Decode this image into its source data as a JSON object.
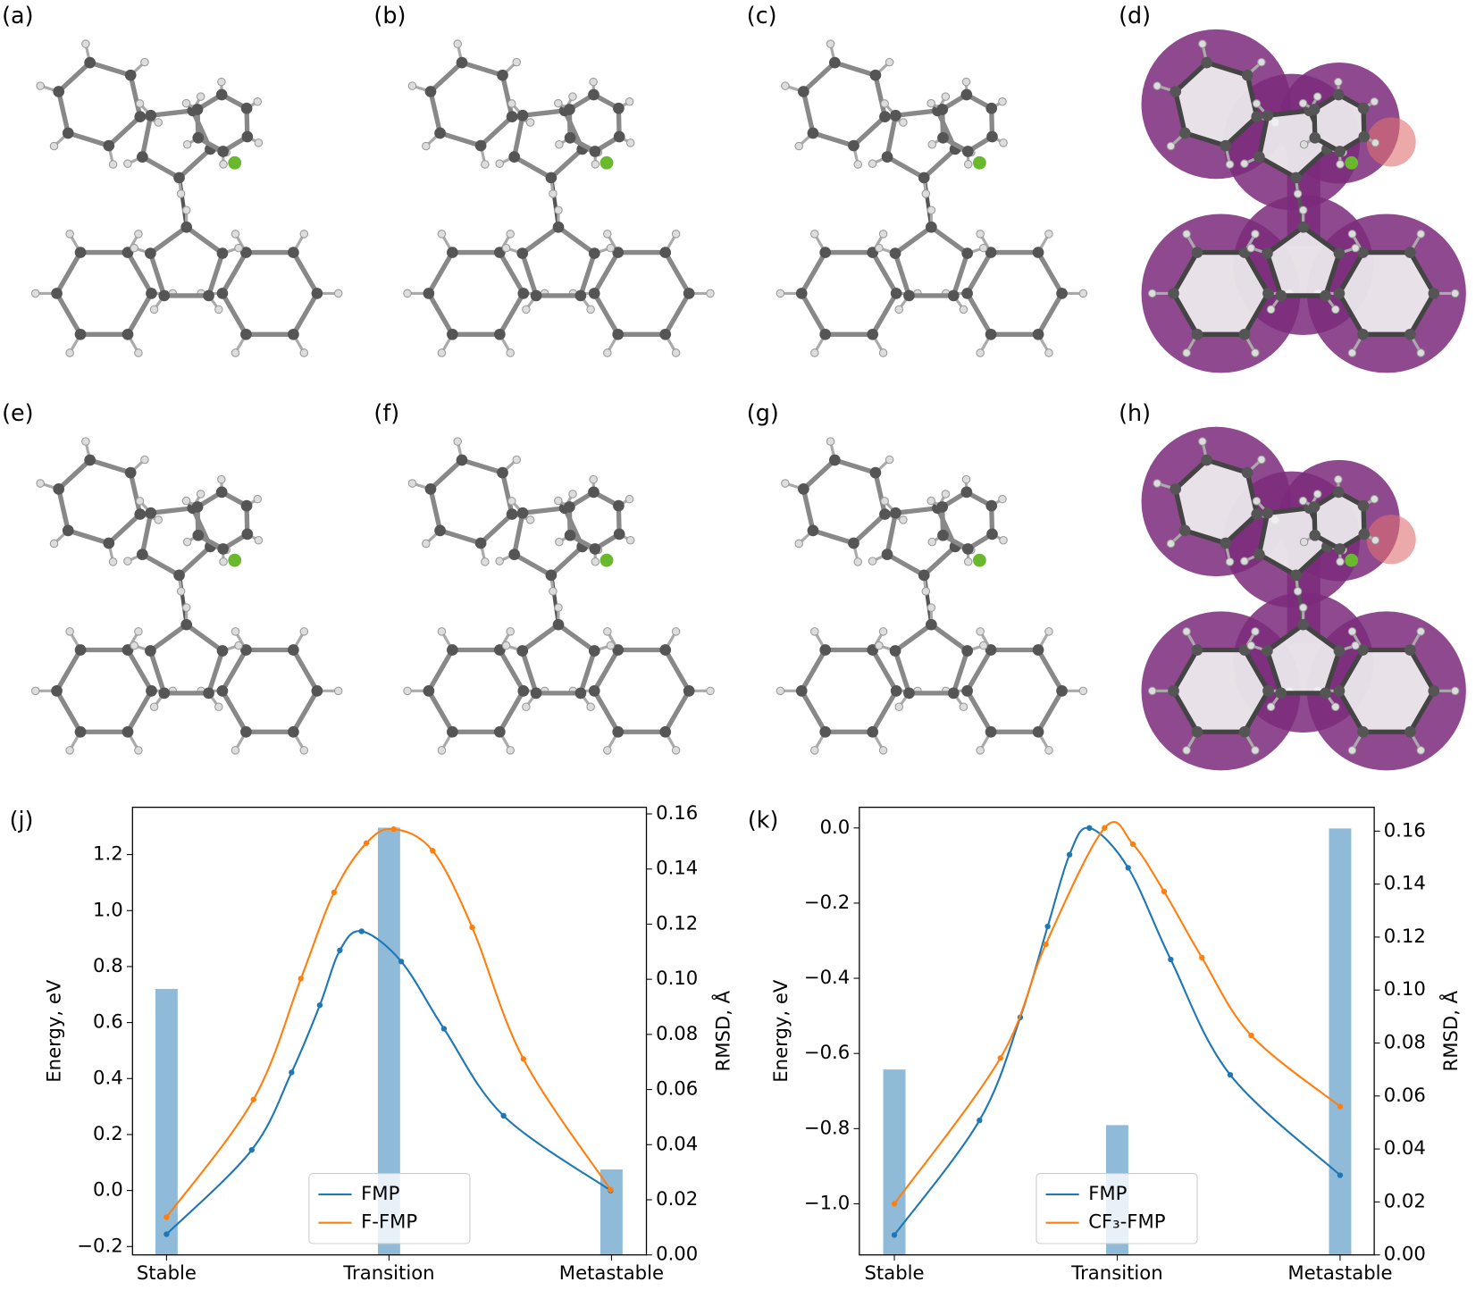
{
  "panels": [
    "(a)",
    "(b)",
    "(c)",
    "(d)",
    "(e)",
    "(f)",
    "(g)",
    "(h)"
  ],
  "chart_data": [
    {
      "type": "line",
      "label": "(j)",
      "ylabel": "Energy, eV",
      "y2label": "RMSD, Å",
      "legend": "lower center",
      "xlim": [
        -0.153,
        2.157
      ],
      "xticks": [
        {
          "value": 0,
          "label": "Stable"
        },
        {
          "value": 1,
          "label": "Transition"
        },
        {
          "value": 2,
          "label": "Metastable"
        }
      ],
      "ylim": [
        -0.23,
        1.369
      ],
      "yticks": [
        {
          "value": -0.2,
          "label": "−0.2"
        },
        {
          "value": 0,
          "label": "0.0"
        },
        0.2,
        0.4,
        0.6,
        0.8,
        {
          "value": 1,
          "label": "1.0"
        },
        1.2
      ],
      "y2lim": [
        0,
        0.1624
      ],
      "y2ticks": [
        {
          "value": 0,
          "label": "0.00"
        },
        {
          "value": 0.02,
          "label": "0.02"
        },
        {
          "value": 0.04,
          "label": "0.04"
        },
        {
          "value": 0.06,
          "label": "0.06"
        },
        {
          "value": 0.08,
          "label": "0.08"
        },
        {
          "value": 0.1,
          "label": "0.10"
        },
        {
          "value": 0.12,
          "label": "0.12"
        },
        {
          "value": 0.14,
          "label": "0.14"
        },
        {
          "value": 0.16,
          "label": "0.16"
        }
      ],
      "series": [
        {
          "type": "bar",
          "axis": "y2",
          "color": "#1f77b4",
          "x": [
            0,
            1,
            2
          ],
          "values": [
            0.0965,
            0.155,
            0.031
          ]
        },
        {
          "name": "FMP",
          "color": "#1f77b4",
          "x": [
            0,
            0.383,
            0.562,
            0.689,
            0.779,
            0.877,
            1.055,
            1.247,
            1.515,
            1.996
          ],
          "values": [
            -0.156,
            0.145,
            0.422,
            0.662,
            0.858,
            0.926,
            0.818,
            0.578,
            0.267,
            0.0
          ]
        },
        {
          "name": "F-FMP",
          "color": "#ff7f0e",
          "x": [
            0,
            0.391,
            0.604,
            0.753,
            0.898,
            1.021,
            1.196,
            1.374,
            1.604,
            1.996
          ],
          "values": [
            -0.095,
            0.325,
            0.757,
            1.065,
            1.241,
            1.291,
            1.214,
            0.94,
            0.47,
            0.003
          ]
        }
      ]
    },
    {
      "type": "line",
      "label": "(k)",
      "ylabel": "Energy, eV",
      "y2label": "RMSD, Å",
      "legend": "lower center",
      "xlim": [
        -0.157,
        2.153
      ],
      "xticks": [
        {
          "value": 0,
          "label": "Stable"
        },
        {
          "value": 1,
          "label": "Transition"
        },
        {
          "value": 2,
          "label": "Metastable"
        }
      ],
      "ylim": [
        -1.136,
        0.055
      ],
      "yticks": [
        {
          "value": 0,
          "label": "0.0"
        },
        {
          "value": -0.2,
          "label": "−0.2"
        },
        {
          "value": -0.4,
          "label": "−0.4"
        },
        {
          "value": -0.6,
          "label": "−0.6"
        },
        {
          "value": -0.8,
          "label": "−0.8"
        },
        {
          "value": -1,
          "label": "−1.0"
        }
      ],
      "y2lim": [
        0,
        0.169
      ],
      "y2ticks": [
        {
          "value": 0,
          "label": "0.00"
        },
        {
          "value": 0.02,
          "label": "0.02"
        },
        {
          "value": 0.04,
          "label": "0.04"
        },
        {
          "value": 0.06,
          "label": "0.06"
        },
        {
          "value": 0.08,
          "label": "0.08"
        },
        {
          "value": 0.1,
          "label": "0.10"
        },
        {
          "value": 0.12,
          "label": "0.12"
        },
        {
          "value": 0.14,
          "label": "0.14"
        },
        {
          "value": 0.16,
          "label": "0.16"
        }
      ],
      "series": [
        {
          "type": "bar",
          "axis": "y2",
          "color": "#1f77b4",
          "x": [
            0,
            1,
            2
          ],
          "values": [
            0.07,
            0.049,
            0.161
          ]
        },
        {
          "name": "FMP",
          "color": "#1f77b4",
          "x": [
            0,
            0.382,
            0.565,
            0.688,
            0.786,
            0.875,
            1.049,
            1.24,
            1.507,
            2.0
          ],
          "values": [
            -1.083,
            -0.778,
            -0.504,
            -0.262,
            -0.071,
            0.0,
            -0.106,
            -0.35,
            -0.657,
            -0.924
          ]
        },
        {
          "name": "CF₃-FMP",
          "color": "#ff7f0e",
          "x": [
            0,
            0.476,
            0.679,
            0.943,
            1.07,
            1.21,
            1.38,
            1.601,
            2.0
          ],
          "values": [
            -1.0,
            -0.612,
            -0.31,
            0.0,
            -0.043,
            -0.169,
            -0.345,
            -0.552,
            -0.741
          ]
        }
      ]
    }
  ]
}
